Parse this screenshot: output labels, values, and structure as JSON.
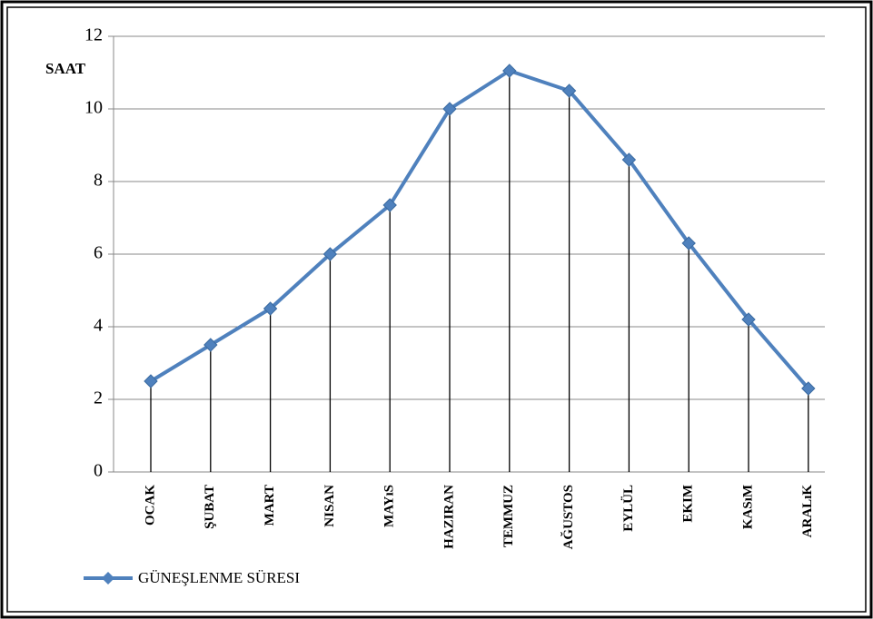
{
  "chart_data": {
    "type": "line",
    "y_label": "SAAT",
    "categories": [
      "OCAK",
      "ŞUBAT",
      "MART",
      "NISAN",
      "MAYıS",
      "HAZIRAN",
      "TEMMUZ",
      "AĞUSTOS",
      "EYLÜL",
      "EKIM",
      "KASıM",
      "ARALıK"
    ],
    "series": [
      {
        "name": "GÜNEŞLENME SÜRESI",
        "color": "#4f81bd",
        "values": [
          2.5,
          3.5,
          4.5,
          6.0,
          7.35,
          10.0,
          11.05,
          10.5,
          8.6,
          6.3,
          4.2,
          2.3
        ]
      }
    ],
    "ylim": [
      0,
      12
    ],
    "yticks": [
      0,
      2,
      4,
      6,
      8,
      10,
      12
    ],
    "grid": true,
    "drop_lines": true,
    "legend": "bottom-left"
  }
}
